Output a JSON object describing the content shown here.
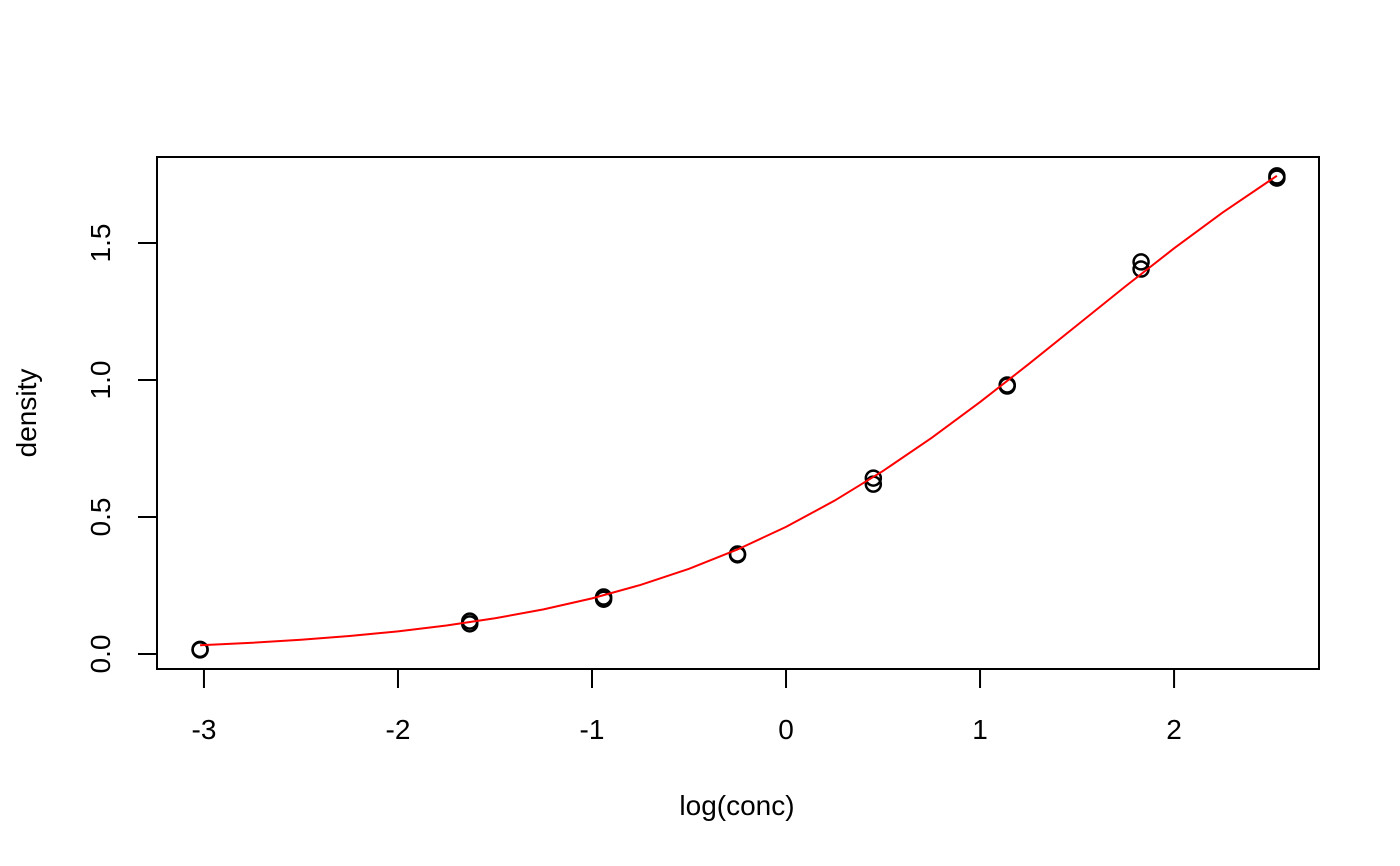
{
  "chart_data": {
    "type": "scatter",
    "xlabel": "log(conc)",
    "ylabel": "density",
    "xlim": [
      -3.242,
      2.747
    ],
    "ylim": [
      -0.0547,
      1.814
    ],
    "xticks": [
      -3,
      -2,
      -1,
      0,
      1,
      2
    ],
    "yticks": [
      {
        "value": 0,
        "label": "0.0"
      },
      {
        "value": 0.5,
        "label": "0.5"
      },
      {
        "value": 1,
        "label": "1.0"
      },
      {
        "value": 1.5,
        "label": "1.5"
      }
    ],
    "series": [
      {
        "mode": "points",
        "color": "#000000",
        "x": [
          -3.02,
          -3.02,
          -1.63,
          -1.63,
          -0.94,
          -0.94,
          -0.25,
          -0.25,
          0.45,
          0.45,
          1.14,
          1.14,
          1.83,
          1.83,
          2.53,
          2.53
        ],
        "values": [
          0.015,
          0.017,
          0.12,
          0.11,
          0.208,
          0.2,
          0.365,
          0.362,
          0.642,
          0.62,
          0.982,
          0.978,
          1.431,
          1.405,
          1.745,
          1.737
        ]
      },
      {
        "mode": "line",
        "color": "#ff0000",
        "x": [
          -3.02,
          -2.75,
          -2.5,
          -2.25,
          -2.0,
          -1.75,
          -1.5,
          -1.25,
          -1.0,
          -0.75,
          -0.5,
          -0.25,
          0,
          0.25,
          0.5,
          0.75,
          1.0,
          1.25,
          1.5,
          1.75,
          2.0,
          2.25,
          2.53
        ],
        "values": [
          0.032,
          0.0412,
          0.0521,
          0.0656,
          0.0828,
          0.1039,
          0.1304,
          0.163,
          0.2031,
          0.2521,
          0.3109,
          0.3815,
          0.464,
          0.5596,
          0.6682,
          0.7887,
          0.9195,
          1.0577,
          1.2,
          1.3423,
          1.4806,
          1.6112,
          1.7455
        ]
      }
    ]
  }
}
